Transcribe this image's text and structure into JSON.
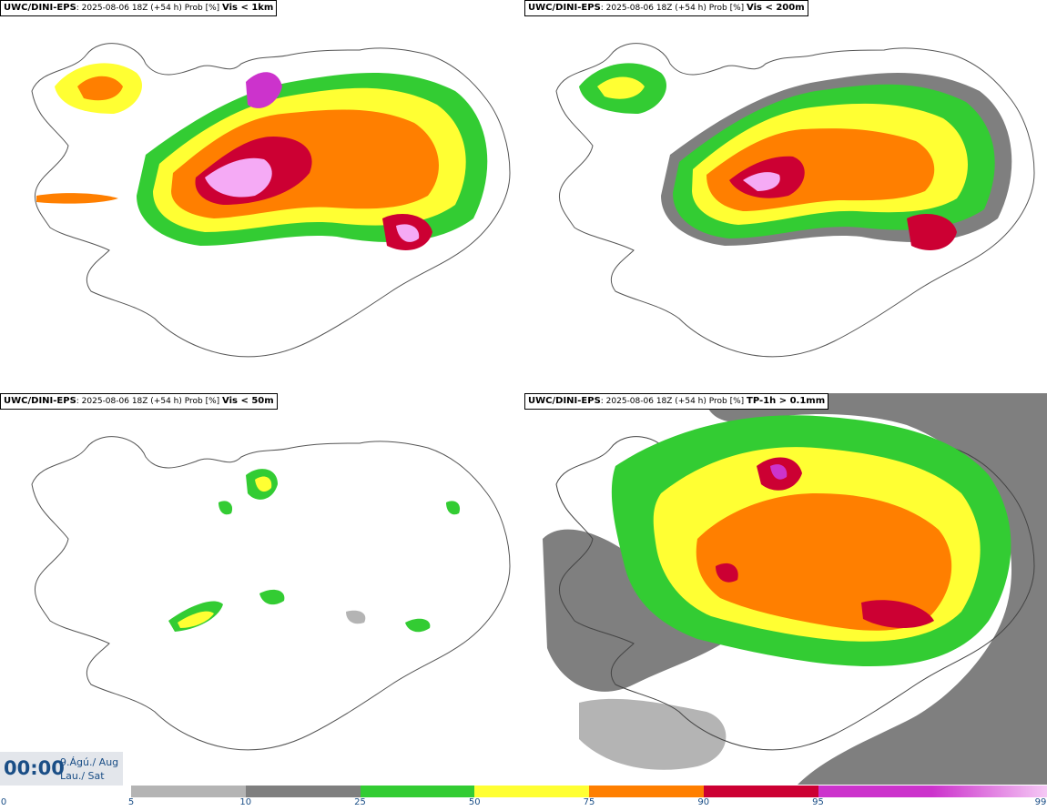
{
  "panels": [
    {
      "model": "UWC/DINI-EPS",
      "meta": ": 2025-08-06 18Z (+54 h) Prob [%] ",
      "variable": "Vis < 1km"
    },
    {
      "model": "UWC/DINI-EPS",
      "meta": ": 2025-08-06 18Z (+54 h) Prob [%] ",
      "variable": "Vis < 200m"
    },
    {
      "model": "UWC/DINI-EPS",
      "meta": ": 2025-08-06 18Z (+54 h) Prob [%] ",
      "variable": "Vis < 50m"
    },
    {
      "model": "UWC/DINI-EPS",
      "meta": ": 2025-08-06 18Z (+54 h) Prob [%] ",
      "variable": "TP-1h > 0.1mm"
    }
  ],
  "valid_time": {
    "time": "00:00",
    "date_line": "9.Ágú./ Aug",
    "day_line": "Lau./ Sat"
  },
  "colorbar": {
    "ticks": [
      "0",
      "5",
      "10",
      "25",
      "50",
      "75",
      "90",
      "95",
      "99"
    ],
    "colors": [
      "#b4b4b4",
      "#7f7f7f",
      "#33cc33",
      "#ffff33",
      "#ff7f00",
      "#cc0033",
      "#cc33cc",
      "#f5aaf5"
    ]
  }
}
